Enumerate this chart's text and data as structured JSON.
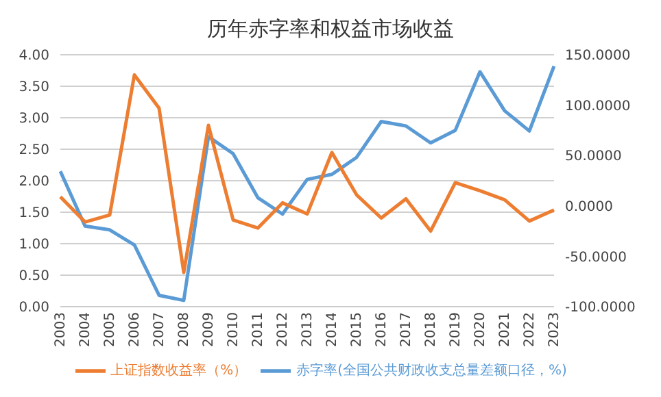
{
  "chart_data": {
    "type": "line",
    "title": "历年赤字率和权益市场收益",
    "categories": [
      "2003",
      "2004",
      "2005",
      "2006",
      "2007",
      "2008",
      "2009",
      "2010",
      "2011",
      "2012",
      "2013",
      "2014",
      "2015",
      "2016",
      "2017",
      "2018",
      "2019",
      "2020",
      "2021",
      "2022",
      "2023"
    ],
    "series": [
      {
        "name": "赤字率(全国公共财政收支总量差额口径，%)",
        "color": "#5b9bd5",
        "values": [
          2.15,
          1.28,
          1.22,
          0.98,
          0.18,
          0.1,
          2.7,
          2.43,
          1.73,
          1.47,
          2.02,
          2.1,
          2.37,
          2.94,
          2.87,
          2.6,
          2.8,
          3.73,
          3.11,
          2.79,
          3.82
        ]
      },
      {
        "name": "上证指数收益率（%）",
        "color": "#ed7d31",
        "axis": "y2",
        "values": [
          9,
          -16,
          -9,
          130,
          97,
          -66,
          80,
          -14,
          -22,
          3,
          -8,
          53,
          11,
          -12,
          7,
          -25,
          23,
          15,
          6,
          -15,
          -4
        ]
      }
    ],
    "ylim": [
      0,
      4
    ],
    "yticks": [
      {
        "value": 0,
        "label": "0.00"
      },
      {
        "value": 0.5,
        "label": "0.50"
      },
      {
        "value": 1,
        "label": "1.00"
      },
      {
        "value": 1.5,
        "label": "1.50"
      },
      {
        "value": 2,
        "label": "2.00"
      },
      {
        "value": 2.5,
        "label": "2.50"
      },
      {
        "value": 3,
        "label": "3.00"
      },
      {
        "value": 3.5,
        "label": "3.50"
      },
      {
        "value": 4,
        "label": "4.00"
      }
    ],
    "y2lim": [
      -100,
      150
    ],
    "y2ticks": [
      {
        "value": -100,
        "label": "-100.0000"
      },
      {
        "value": -50,
        "label": "-50.0000"
      },
      {
        "value": 0,
        "label": "0.0000"
      },
      {
        "value": 50,
        "label": "50.0000"
      },
      {
        "value": 100,
        "label": "100.0000"
      },
      {
        "value": 150,
        "label": "150.0000"
      }
    ],
    "grid": "y",
    "legend": "bottom",
    "marker": "none",
    "line_style": "solid"
  }
}
